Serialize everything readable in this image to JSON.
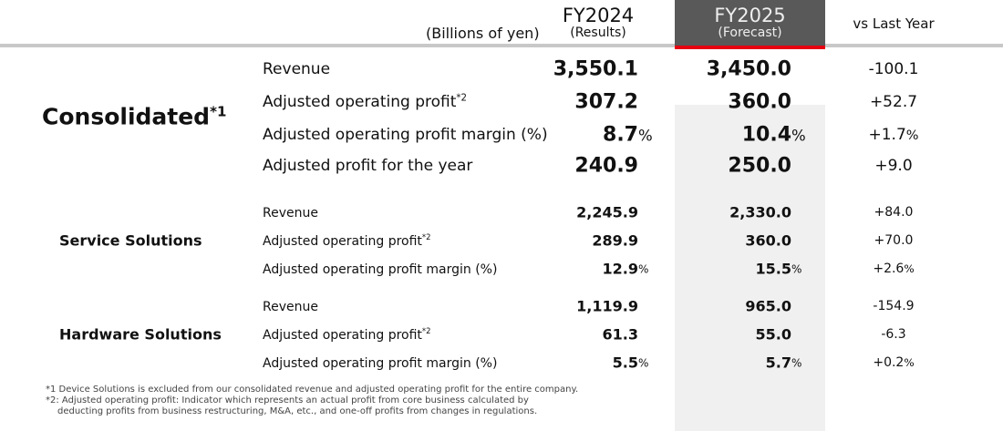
{
  "header": {
    "unit": "(Billions of yen)",
    "fy2024": "FY2024",
    "fy2024_sub": "(Results)",
    "fy2025": "FY2025",
    "fy2025_sub": "(Forecast)",
    "vs": "vs Last Year"
  },
  "sections": [
    {
      "name": "Consolidated",
      "sup": "*1",
      "rows": [
        {
          "label": "Revenue",
          "sup": "",
          "fy2024": "3,550.1",
          "fy2024_unit": "",
          "fy2025": "3,450.0",
          "fy2025_unit": "",
          "vs": "-100.1",
          "vs_unit": ""
        },
        {
          "label": "Adjusted operating profit",
          "sup": "*2",
          "fy2024": "307.2",
          "fy2024_unit": "",
          "fy2025": "360.0",
          "fy2025_unit": "",
          "vs": "+52.7",
          "vs_unit": ""
        },
        {
          "label": "Adjusted operating profit margin (%)",
          "sup": "",
          "fy2024": "8.7",
          "fy2024_unit": "%",
          "fy2025": "10.4",
          "fy2025_unit": "%",
          "vs": "+1.7",
          "vs_unit": "%"
        },
        {
          "label": "Adjusted profit for the year",
          "sup": "",
          "fy2024": "240.9",
          "fy2024_unit": "",
          "fy2025": "250.0",
          "fy2025_unit": "",
          "vs": "+9.0",
          "vs_unit": ""
        }
      ]
    },
    {
      "name": "Service Solutions",
      "sup": "",
      "rows": [
        {
          "label": "Revenue",
          "sup": "",
          "fy2024": "2,245.9",
          "fy2024_unit": "",
          "fy2025": "2,330.0",
          "fy2025_unit": "",
          "vs": "+84.0",
          "vs_unit": ""
        },
        {
          "label": "Adjusted operating profit",
          "sup": "*2",
          "fy2024": "289.9",
          "fy2024_unit": "",
          "fy2025": "360.0",
          "fy2025_unit": "",
          "vs": "+70.0",
          "vs_unit": ""
        },
        {
          "label": "Adjusted operating profit margin (%)",
          "sup": "",
          "fy2024": "12.9",
          "fy2024_unit": "%",
          "fy2025": "15.5",
          "fy2025_unit": "%",
          "vs": "+2.6",
          "vs_unit": "%"
        }
      ]
    },
    {
      "name": "Hardware Solutions",
      "sup": "",
      "rows": [
        {
          "label": "Revenue",
          "sup": "",
          "fy2024": "1,119.9",
          "fy2024_unit": "",
          "fy2025": "965.0",
          "fy2025_unit": "",
          "vs": "-154.9",
          "vs_unit": ""
        },
        {
          "label": "Adjusted operating profit",
          "sup": "*2",
          "fy2024": "61.3",
          "fy2024_unit": "",
          "fy2025": "55.0",
          "fy2025_unit": "",
          "vs": "-6.3",
          "vs_unit": ""
        },
        {
          "label": "Adjusted operating profit margin (%)",
          "sup": "",
          "fy2024": "5.5",
          "fy2024_unit": "%",
          "fy2025": "5.7",
          "fy2025_unit": "%",
          "vs": "+0.2",
          "vs_unit": "%"
        }
      ]
    }
  ],
  "notes": [
    "*1 Device Solutions is excluded from our consolidated revenue and adjusted operating profit for the entire company.",
    "*2: Adjusted operating profit: Indicator which represents an actual profit from core business calculated by",
    "deducting profits from business restructuring, M&A, etc., and one-off profits from changes in regulations."
  ],
  "colors": {
    "header_dark": "#595959",
    "accent_red": "#e60012",
    "forecast_bg": "#f0f0f0"
  }
}
